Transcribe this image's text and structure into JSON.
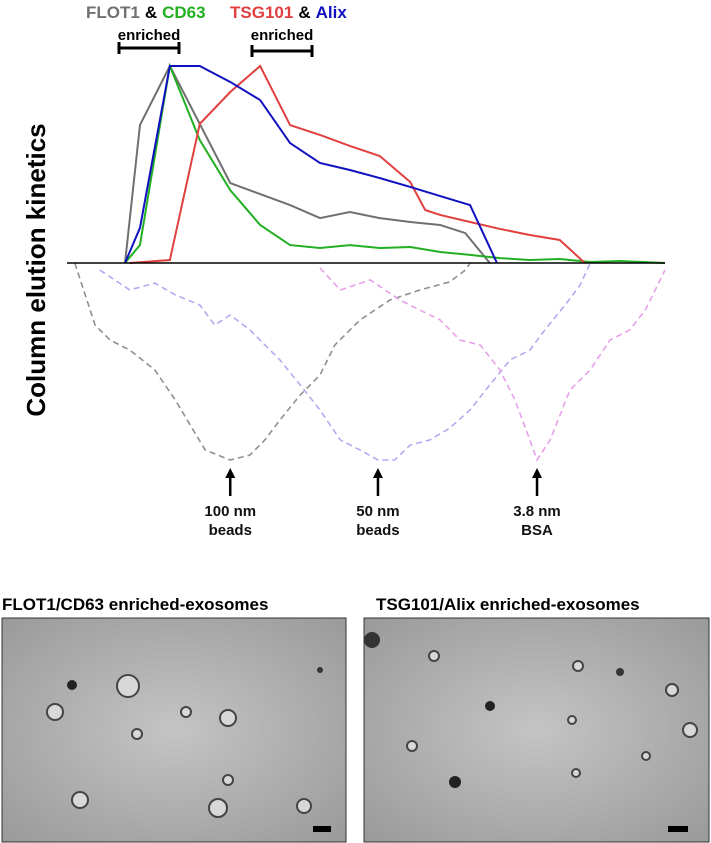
{
  "chart_data": {
    "type": "line",
    "ylabel": "Column elution kinetics",
    "legend_joiner": "&",
    "annotations": [
      "enriched",
      "enriched"
    ],
    "xlim": [
      0,
      100
    ],
    "ylim": [
      -100,
      100
    ],
    "series": [
      {
        "name": "FLOT1",
        "color": "#707070",
        "style": "solid",
        "x": [
          9.7,
          12.2,
          17.2,
          27.3,
          37.3,
          42.3,
          47.3,
          52.3,
          57.4,
          62.4,
          66.6,
          70.7
        ],
        "values": [
          0,
          70,
          100,
          40.6,
          29.4,
          22.8,
          25.9,
          22.8,
          20.8,
          19.3,
          15.2,
          0
        ]
      },
      {
        "name": "CD63",
        "color": "#22b022",
        "style": "solid",
        "x": [
          9.7,
          12.2,
          17.2,
          22.2,
          27.3,
          32.3,
          37.3,
          42.3,
          47.3,
          52.3,
          57.4,
          62.4,
          67.4,
          72.4,
          77.4,
          82.4,
          87.5,
          92.5,
          100
        ],
        "values": [
          0,
          9.1,
          100,
          62.4,
          37,
          19.3,
          9.1,
          7.6,
          9.1,
          7.6,
          8.1,
          5.6,
          4.1,
          2.5,
          1.5,
          2,
          0.5,
          1,
          0
        ]
      },
      {
        "name": "TSG101",
        "color": "#e04040",
        "style": "solid",
        "x": [
          10.5,
          17.2,
          22.2,
          27.3,
          32.3,
          37.3,
          42.3,
          47.3,
          52.3,
          57.4,
          59.9,
          62.4,
          67.4,
          72.4,
          77.4,
          82.4,
          86.6
        ],
        "values": [
          0,
          1.5,
          70.6,
          86.8,
          100,
          70,
          65,
          59.4,
          54.3,
          41.1,
          26.9,
          24.4,
          20.8,
          17.3,
          14.2,
          11.7,
          0
        ]
      },
      {
        "name": "Alix",
        "color": "#1010c0",
        "style": "solid",
        "x": [
          9.7,
          12.2,
          17.2,
          22.2,
          27.3,
          32.3,
          37.3,
          42.3,
          47.3,
          52.3,
          57.4,
          62.4,
          67.4,
          71.9
        ],
        "values": [
          0,
          17.8,
          100,
          100,
          91.9,
          82.7,
          60.9,
          50.8,
          47.2,
          43.1,
          38.6,
          34,
          29.4,
          0
        ]
      },
      {
        "name": "100 nm beads",
        "color": "#909090",
        "style": "dashed",
        "x": [
          1.3,
          4.7,
          7.2,
          10.5,
          14.7,
          18.1,
          20.6,
          23.1,
          27.3,
          30.6,
          33.1,
          35.6,
          39,
          42.3,
          44.8,
          49,
          54,
          59,
          64,
          66.6,
          67.4
        ],
        "values": [
          0,
          -31.5,
          -39.1,
          -44.2,
          -54.3,
          -69.5,
          -82.2,
          -94.9,
          -100,
          -97.5,
          -89.8,
          -79.7,
          -67,
          -56.9,
          -41.6,
          -28.9,
          -18.8,
          -13.7,
          -9.6,
          -3.6,
          0
        ]
      },
      {
        "name": "50 nm beads",
        "color": "#b8a8f0",
        "style": "dashed",
        "x": [
          5.5,
          10.5,
          14.7,
          18.1,
          22.2,
          24.7,
          27.3,
          30.6,
          35.6,
          39,
          42.3,
          45.7,
          49,
          52,
          54.8,
          57.4,
          60.7,
          64,
          67.4,
          70.7,
          74.1,
          77.4,
          79.9,
          83.3,
          85.8,
          87.5
        ],
        "values": [
          -3.6,
          -13.7,
          -10.2,
          -16.2,
          -21.3,
          -31.5,
          -26.4,
          -34,
          -49.2,
          -61.9,
          -74.6,
          -89.8,
          -94.9,
          -100,
          -100,
          -92.4,
          -89.8,
          -83.8,
          -74.6,
          -61.9,
          -49.2,
          -44.2,
          -34,
          -21.3,
          -11.2,
          0
        ]
      },
      {
        "name": "3.8 nm BSA",
        "color": "#e8a0e8",
        "style": "dashed",
        "x": [
          42.3,
          45.7,
          50.7,
          55.7,
          59,
          62.4,
          65.7,
          69.1,
          72.4,
          74.9,
          77.4,
          78.6,
          80.8,
          84.1,
          87.5,
          90.8,
          94.1,
          96.7,
          100
        ],
        "values": [
          -2.5,
          -13.7,
          -8.6,
          -18.8,
          -23.9,
          -28.9,
          -39.1,
          -41.6,
          -54.3,
          -69.5,
          -89.8,
          -100,
          -89.8,
          -64.5,
          -54.3,
          -39.1,
          -34,
          -23.9,
          -3.6
        ]
      }
    ]
  },
  "micrographs": [
    {
      "title": "FLOT1/CD63 enriched-exosomes"
    },
    {
      "title": "TSG101/Alix enriched-exosomes"
    }
  ]
}
